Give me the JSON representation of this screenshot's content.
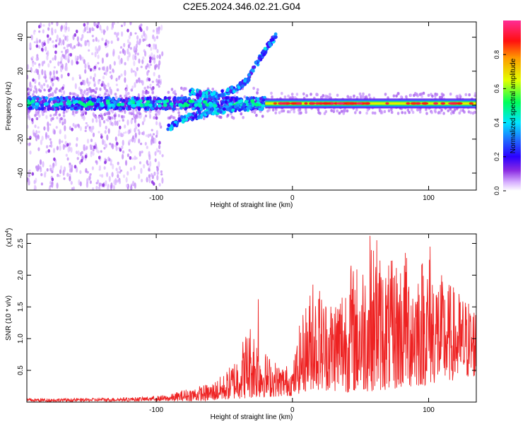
{
  "title": "C2E5.2024.346.02.21.G04",
  "colors": {
    "snr_line": "#ee2222",
    "frame": "#000000",
    "noise": "#c9a6ff"
  },
  "chart_data": [
    {
      "type": "heatmap",
      "xlabel": "Height of straight line (km)",
      "ylabel": "Frequency (Hz)",
      "xlim": [
        -195,
        135
      ],
      "ylim": [
        -50,
        49
      ],
      "xticks": [
        {
          "v": -100,
          "label": "-100"
        },
        {
          "v": 0,
          "label": "0"
        },
        {
          "v": 100,
          "label": "100"
        }
      ],
      "yticks": [
        {
          "v": 40,
          "label": "40"
        },
        {
          "v": 20,
          "label": "20"
        },
        {
          "v": 0,
          "label": "0"
        },
        {
          "v": -20,
          "label": "-20"
        },
        {
          "v": -40,
          "label": "-40"
        }
      ],
      "grid": false,
      "colorbar": {
        "label": "Normalized spectral amplitude",
        "range": [
          0,
          1
        ],
        "ticks": [
          {
            "v": 0.0,
            "label": "0.0"
          },
          {
            "v": 0.2,
            "label": "0.2"
          },
          {
            "v": 0.4,
            "label": "0.4"
          },
          {
            "v": 0.6,
            "label": "0.6"
          },
          {
            "v": 0.8,
            "label": "0.8"
          }
        ],
        "colormap": "rainbow: white-violet-blue-cyan-green-yellow-red-magenta"
      },
      "features": {
        "dc_band_frequency_hz": 1,
        "dc_band_x_range_km": [
          -195,
          135
        ],
        "noise_columns_x_range_km": [
          -195,
          -95
        ],
        "rising_branch": [
          [
            -75,
            8
          ],
          [
            -55,
            6
          ],
          [
            -40,
            10
          ],
          [
            -32,
            16
          ],
          [
            -28,
            22
          ],
          [
            -22,
            30
          ],
          [
            -16,
            37
          ],
          [
            -12,
            41
          ]
        ],
        "falling_branch": [
          [
            -92,
            -14
          ],
          [
            -80,
            -8
          ],
          [
            -60,
            -4
          ],
          [
            -45,
            -2
          ],
          [
            -30,
            -1
          ]
        ],
        "peak_segment_x_range_km": [
          -20,
          135
        ],
        "peak_amplitude": 0.95
      }
    },
    {
      "type": "line",
      "xlabel": "Height of straight line (km)",
      "ylabel": "SNR (10 * v/v)",
      "y_multiplier": "(x10^4)",
      "xlim": [
        -195,
        135
      ],
      "ylim": [
        0,
        2.65
      ],
      "xticks": [
        {
          "v": -100,
          "label": "-100"
        },
        {
          "v": 0,
          "label": "0"
        },
        {
          "v": 100,
          "label": "100"
        }
      ],
      "yticks": [
        {
          "v": 0.5,
          "label": "0.5"
        },
        {
          "v": 1.0,
          "label": "1.0"
        },
        {
          "v": 1.5,
          "label": "1.5"
        },
        {
          "v": 2.0,
          "label": "2.0"
        },
        {
          "v": 2.5,
          "label": "2.5"
        }
      ],
      "grid": false,
      "series": [
        {
          "envelope_x": [
            -195,
            -150,
            -110,
            -90,
            -80,
            -70,
            -60,
            -50,
            -45,
            -40,
            -35,
            -30,
            -25,
            -20,
            -15,
            -10,
            -5,
            0,
            5,
            10,
            15,
            20,
            30,
            40,
            50,
            60,
            70,
            80,
            90,
            100,
            110,
            120,
            135
          ],
          "envelope_y": [
            0.06,
            0.06,
            0.08,
            0.12,
            0.2,
            0.25,
            0.3,
            0.45,
            0.6,
            0.8,
            1.1,
            1.3,
            1.0,
            0.8,
            0.7,
            0.6,
            0.6,
            0.55,
            1.2,
            1.6,
            1.9,
            1.75,
            1.7,
            2.1,
            2.25,
            2.5,
            2.2,
            2.35,
            2.3,
            2.4,
            2.0,
            1.8,
            1.55
          ],
          "min_y_x": [
            -195,
            -60,
            -40,
            0,
            15,
            40,
            80,
            135
          ],
          "min_y_y": [
            0.0,
            0.02,
            0.05,
            0.1,
            0.2,
            0.15,
            0.2,
            0.4
          ],
          "peaks": [
            [
              -25,
              1.62
            ],
            [
              15,
              1.85
            ],
            [
              20,
              1.75
            ],
            [
              43,
              2.15
            ],
            [
              57,
              2.62
            ],
            [
              62,
              2.55
            ],
            [
              83,
              2.35
            ],
            [
              101,
              2.45
            ],
            [
              128,
              1.3
            ]
          ]
        }
      ]
    }
  ]
}
